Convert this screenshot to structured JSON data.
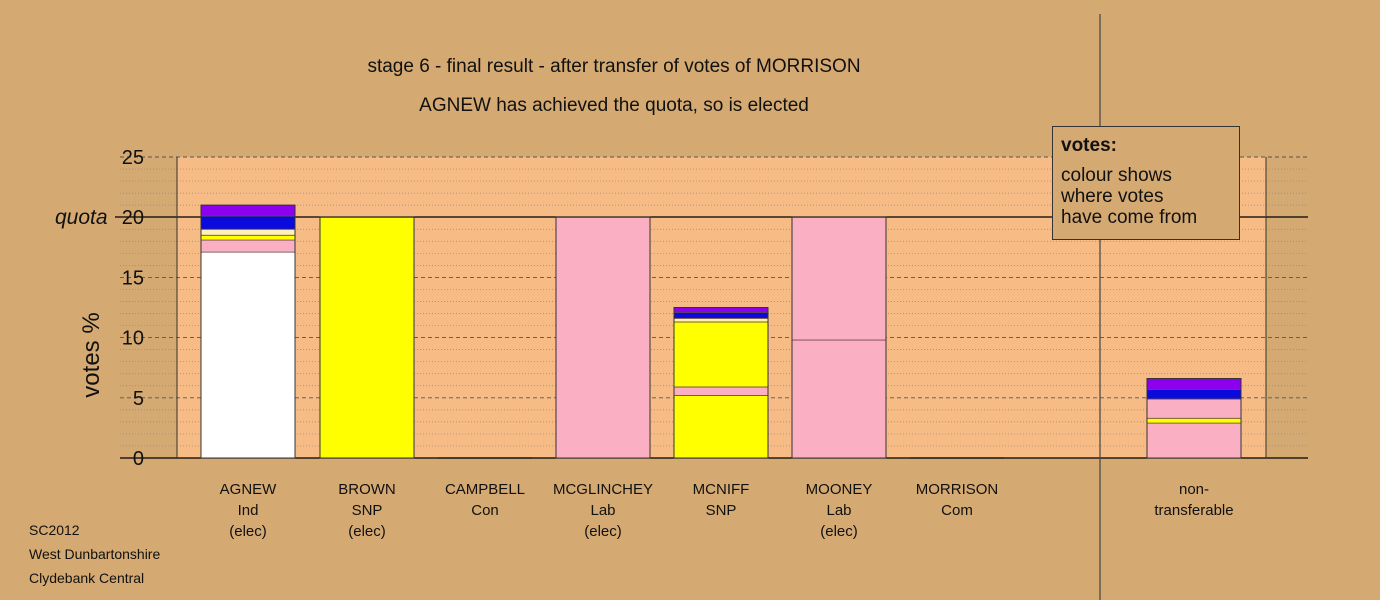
{
  "header": {
    "line1": "stage 6 - final result - after transfer of votes of MORRISON",
    "line2": "AGNEW has achieved the quota, so is elected"
  },
  "legend": {
    "title": "votes:",
    "lines": [
      "colour shows",
      "where votes",
      "have come from"
    ]
  },
  "footer": {
    "lines": [
      "SC2012",
      "West Dunbartonshire",
      "Clydebank Central"
    ]
  },
  "colors": {
    "background": "#d4a972",
    "plot_area": "#f7bc86",
    "Ind": "#ffffff",
    "SNP": "#ffff00",
    "Lab": "#fbafc3",
    "Con": "#0a0adc",
    "Com": "#8c00ee",
    "Other": "#fff0b4"
  },
  "chart_data": {
    "type": "bar",
    "stacked": true,
    "ylabel": "votes %",
    "ylim": [
      0,
      25
    ],
    "yticks": [
      0,
      5,
      10,
      15,
      20,
      25
    ],
    "quota": 20,
    "quota_label": "quota",
    "grid": true,
    "categories": [
      {
        "lines": [
          "AGNEW",
          "Ind",
          "(elec)"
        ]
      },
      {
        "lines": [
          "BROWN",
          "SNP",
          "(elec)"
        ]
      },
      {
        "lines": [
          "CAMPBELL",
          "Con"
        ]
      },
      {
        "lines": [
          "MCGLINCHEY",
          "Lab",
          "(elec)"
        ]
      },
      {
        "lines": [
          "MCNIFF",
          "SNP"
        ]
      },
      {
        "lines": [
          "MOONEY",
          "Lab",
          "(elec)"
        ]
      },
      {
        "lines": [
          "MORRISON",
          "Com"
        ]
      },
      {
        "lines": [
          "non-",
          "transferable"
        ]
      }
    ],
    "stacks": [
      [
        {
          "source": "Ind",
          "value": 17.1
        },
        {
          "source": "Lab",
          "value": 1.0
        },
        {
          "source": "SNP",
          "value": 0.4
        },
        {
          "source": "Other",
          "value": 0.5
        },
        {
          "source": "Con",
          "value": 1.1
        },
        {
          "source": "Com",
          "value": 0.9
        }
      ],
      [
        {
          "source": "SNP",
          "value": 20.0
        }
      ],
      [],
      [
        {
          "source": "Lab",
          "value": 20.0
        }
      ],
      [
        {
          "source": "SNP",
          "value": 5.2
        },
        {
          "source": "Lab",
          "value": 0.7
        },
        {
          "source": "SNP",
          "value": 5.4
        },
        {
          "source": "Other",
          "value": 0.3
        },
        {
          "source": "Con",
          "value": 0.5
        },
        {
          "source": "Com",
          "value": 0.4
        }
      ],
      [
        {
          "source": "Lab",
          "value": 9.8
        },
        {
          "source": "Lab",
          "value": 10.2
        }
      ],
      [],
      [
        {
          "source": "Lab",
          "value": 2.9
        },
        {
          "source": "SNP",
          "value": 0.4
        },
        {
          "source": "Lab",
          "value": 1.6
        },
        {
          "source": "Con",
          "value": 0.8
        },
        {
          "source": "Com",
          "value": 0.9
        }
      ]
    ]
  }
}
